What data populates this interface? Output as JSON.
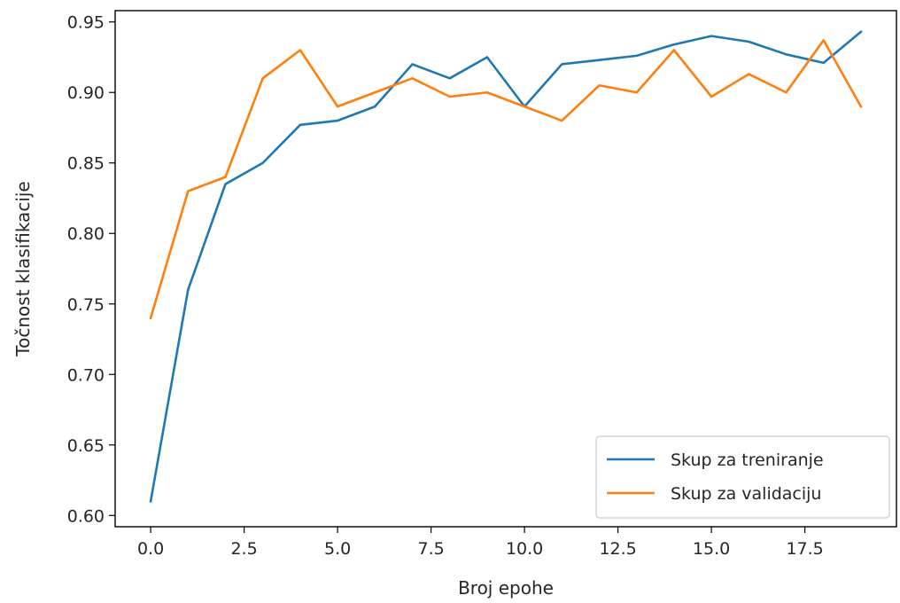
{
  "chart_data": {
    "type": "line",
    "title": "",
    "xlabel": "Broj epohe",
    "ylabel": "Točnost klasifikacije",
    "xlim": [
      -0.95,
      19.95
    ],
    "ylim": [
      0.592,
      0.958
    ],
    "x_ticks": [
      0.0,
      2.5,
      5.0,
      7.5,
      10.0,
      12.5,
      15.0,
      17.5
    ],
    "x_tick_labels": [
      "0.0",
      "2.5",
      "5.0",
      "7.5",
      "10.0",
      "12.5",
      "15.0",
      "17.5"
    ],
    "y_ticks": [
      0.6,
      0.65,
      0.7,
      0.75,
      0.8,
      0.85,
      0.9,
      0.95
    ],
    "y_tick_labels": [
      "0.60",
      "0.65",
      "0.70",
      "0.75",
      "0.80",
      "0.85",
      "0.90",
      "0.95"
    ],
    "grid": false,
    "legend_position": "lower-right",
    "x": [
      0,
      1,
      2,
      3,
      4,
      5,
      6,
      7,
      8,
      9,
      10,
      11,
      12,
      13,
      14,
      15,
      16,
      17,
      18,
      19
    ],
    "series": [
      {
        "name": "Skup za treniranje",
        "color": "#1f77b4",
        "values": [
          0.61,
          0.76,
          0.835,
          0.85,
          0.877,
          0.88,
          0.89,
          0.92,
          0.91,
          0.925,
          0.89,
          0.92,
          0.923,
          0.926,
          0.934,
          0.94,
          0.936,
          0.927,
          0.921,
          0.943
        ]
      },
      {
        "name": "Skup za validaciju",
        "color": "#ff7f0e",
        "values": [
          0.74,
          0.83,
          0.84,
          0.91,
          0.93,
          0.89,
          0.9,
          0.91,
          0.897,
          0.9,
          0.89,
          0.88,
          0.905,
          0.9,
          0.93,
          0.897,
          0.913,
          0.9,
          0.937,
          0.89
        ]
      }
    ]
  }
}
